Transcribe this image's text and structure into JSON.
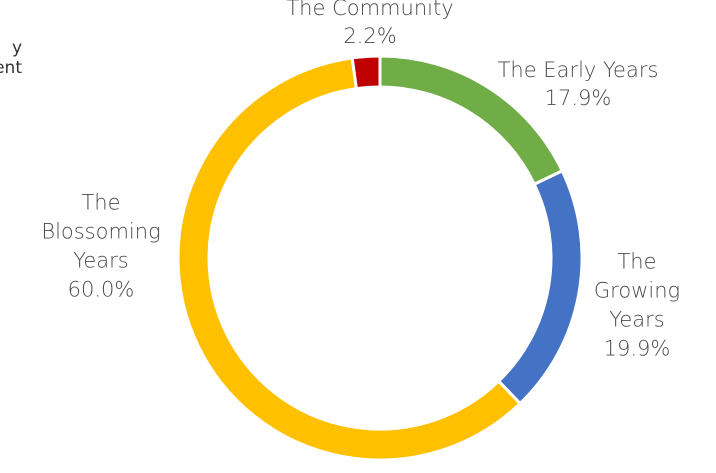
{
  "clipped_text": {
    "line1": "y",
    "line2": "ent"
  },
  "chart_data": {
    "type": "pie",
    "variant": "donut",
    "title": "",
    "legend": "none",
    "slices": [
      {
        "name": "The Early Years",
        "label_lines": [
          "The Early Years"
        ],
        "value": 17.9,
        "label": "17.9%",
        "color": "#70ad47"
      },
      {
        "name": "The Growing Years",
        "label_lines": [
          "The",
          "Growing",
          "Years"
        ],
        "value": 19.9,
        "label": "19.9%",
        "color": "#4472c4"
      },
      {
        "name": "The Blossoming Years",
        "label_lines": [
          "The",
          "Blossoming",
          "Years"
        ],
        "value": 60.0,
        "label": "60.0%",
        "color": "#ffc000"
      },
      {
        "name": "The Community",
        "label_lines": [
          "The Community"
        ],
        "value": 2.2,
        "label": "2.2%",
        "color": "#c00000"
      }
    ]
  }
}
